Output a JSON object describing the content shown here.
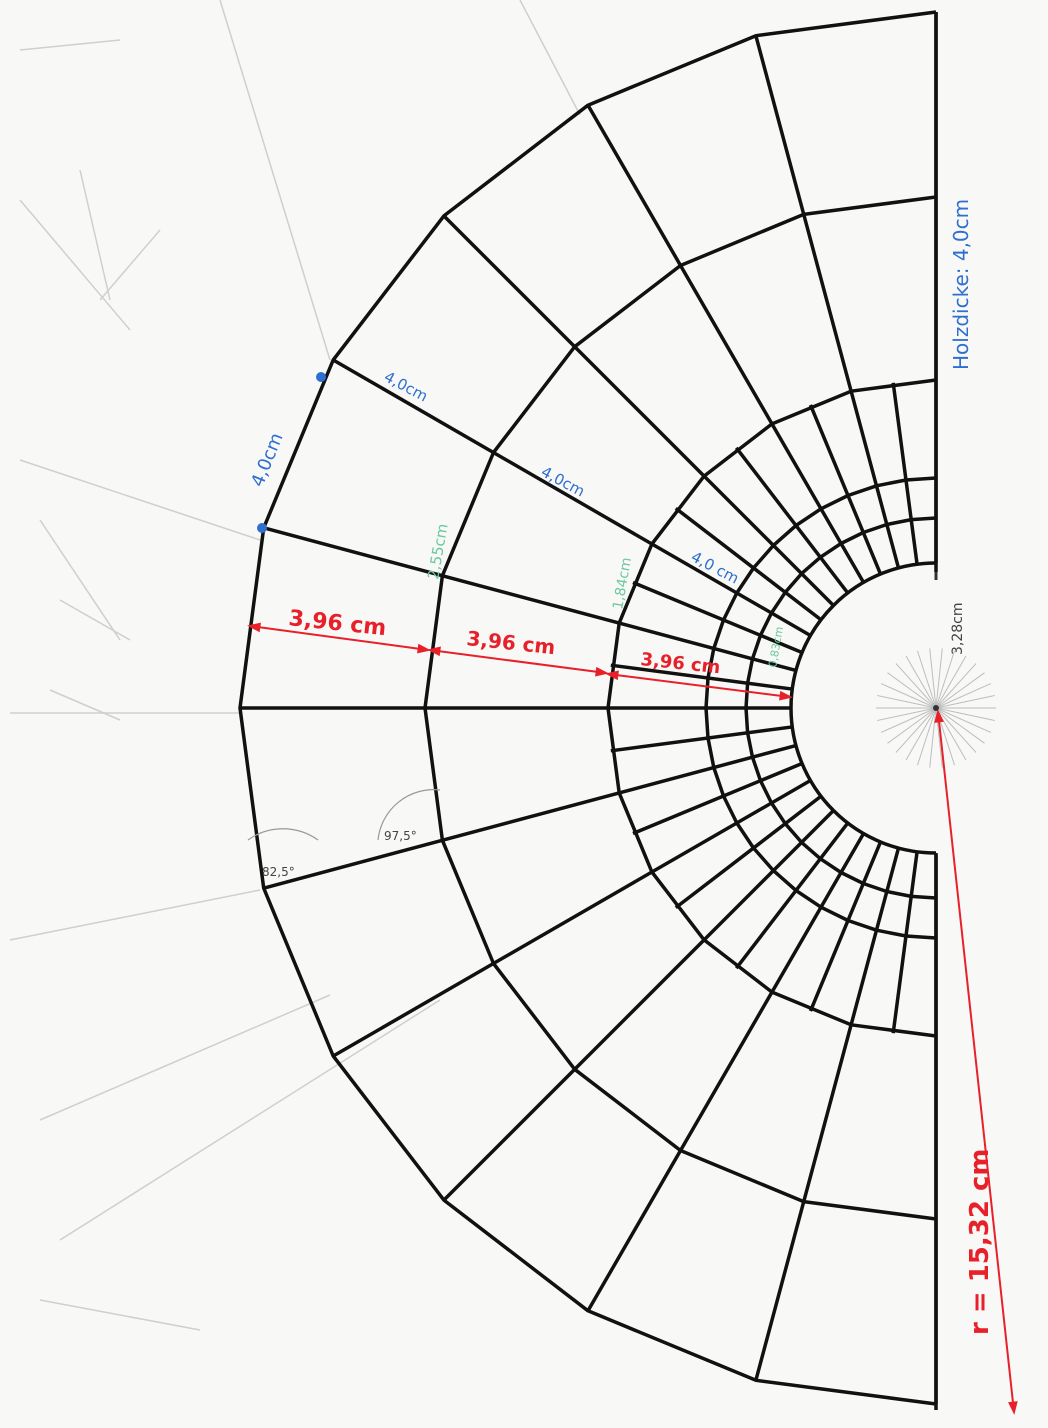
{
  "drawing": {
    "title": "",
    "colors": {
      "paper": "#f8f8f6",
      "ink": "#111111",
      "red_dimension": "#e8202a",
      "blue_dimension": "#2f6fd0",
      "green_dimension": "#6cc9a0",
      "construction": "#c8c8c8"
    }
  },
  "labels": {
    "wood_thickness": "Holzdicke: 4,0cm",
    "radius": "r = 15,32 cm",
    "inner_radius": "3,28cm",
    "ring_width_outer": "3,96 cm",
    "ring_width_middle": "3,96 cm",
    "ring_width_inner": "3,96 cm",
    "arc_outer": "4,0cm",
    "spoke_1": "4,0cm",
    "spoke_2": "4,0cm",
    "spoke_3": "4,0 cm",
    "green_outer": "2,55cm",
    "green_middle": "1,84cm",
    "green_inner": "0,83cm",
    "angle_outer": "82,5°",
    "angle_inner": "97,5°"
  }
}
